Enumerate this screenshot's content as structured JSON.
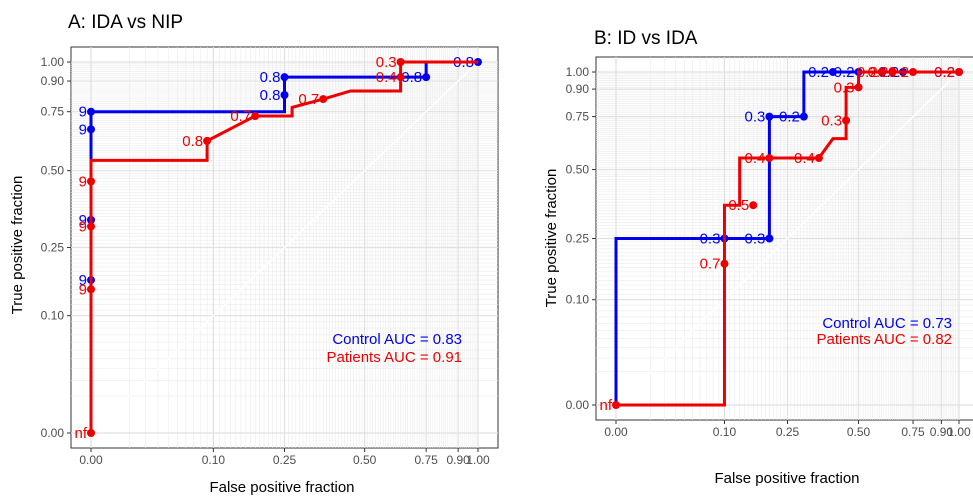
{
  "colors": {
    "control": "#0000ee",
    "patients": "#ee0000",
    "grid": "#ebebeb",
    "panel_border": "#333333"
  },
  "chart_data": [
    {
      "type": "line",
      "title": "A: IDA vs NIP",
      "xlabel": "False positive fraction",
      "ylabel": "True positive fraction",
      "xlim": [
        0,
        1
      ],
      "ylim": [
        0,
        1
      ],
      "x_ticks": [
        "0.00",
        "0.10",
        "0.25",
        "0.50",
        "0.75",
        "0.90",
        "1.00"
      ],
      "y_ticks": [
        "0.00",
        "0.10",
        "0.25",
        "0.50",
        "0.75",
        "0.90",
        "1.00"
      ],
      "grid": true,
      "series": [
        {
          "name": "Control",
          "auc_label": "Control AUC = 0.83",
          "x": [
            0,
            0,
            0,
            0,
            0,
            0,
            0.25,
            0.25,
            0.75,
            0.75,
            1
          ],
          "y": [
            0,
            0.17,
            0.33,
            0.58,
            0.67,
            0.75,
            0.75,
            0.92,
            0.92,
            1,
            1
          ],
          "points": [
            {
              "x": 0,
              "y": 0.17,
              "label": "9"
            },
            {
              "x": 0,
              "y": 0.33,
              "label": "9"
            },
            {
              "x": 0,
              "y": 0.67,
              "label": "9"
            },
            {
              "x": 0,
              "y": 0.75,
              "label": "9"
            },
            {
              "x": 0.25,
              "y": 0.83,
              "label": "0.8"
            },
            {
              "x": 0.25,
              "y": 0.92,
              "label": "0.8"
            },
            {
              "x": 0.75,
              "y": 0.92,
              "label": "0.8"
            },
            {
              "x": 1,
              "y": 1,
              "label": "0.8"
            }
          ]
        },
        {
          "name": "Patients",
          "auc_label": "Patients AUC = 0.91",
          "x": [
            0,
            0,
            0,
            0.09,
            0.09,
            0.18,
            0.18,
            0.27,
            0.27,
            0.36,
            0.45,
            0.64,
            0.64,
            1
          ],
          "y": [
            0,
            0.15,
            0.54,
            0.54,
            0.62,
            0.73,
            0.73,
            0.73,
            0.77,
            0.81,
            0.85,
            0.85,
            1,
            1
          ],
          "points": [
            {
              "x": 0,
              "y": 0,
              "label": "nf"
            },
            {
              "x": 0,
              "y": 0.15,
              "label": "9"
            },
            {
              "x": 0,
              "y": 0.31,
              "label": "9"
            },
            {
              "x": 0,
              "y": 0.46,
              "label": "9"
            },
            {
              "x": 0.09,
              "y": 0.62,
              "label": "0.8"
            },
            {
              "x": 0.18,
              "y": 0.73,
              "label": "0.7"
            },
            {
              "x": 0.36,
              "y": 0.81,
              "label": "0.7"
            },
            {
              "x": 0.64,
              "y": 0.92,
              "label": "0.4"
            },
            {
              "x": 0.64,
              "y": 1,
              "label": "0.3"
            }
          ]
        }
      ]
    },
    {
      "type": "line",
      "title": "B: ID vs IDA",
      "xlabel": "False positive fraction",
      "ylabel": "True positive fraction",
      "xlim": [
        0,
        1
      ],
      "ylim": [
        0,
        1
      ],
      "x_ticks": [
        "0.00",
        "0.10",
        "0.25",
        "0.50",
        "0.75",
        "0.90",
        "1.00"
      ],
      "y_ticks": [
        "0.00",
        "0.10",
        "0.25",
        "0.50",
        "0.75",
        "0.90",
        "1.00"
      ],
      "grid": true,
      "series": [
        {
          "name": "Control",
          "auc_label": "Control AUC = 0.73",
          "x": [
            0,
            0,
            0.2,
            0.2,
            0.3,
            0.3,
            1
          ],
          "y": [
            0,
            0.25,
            0.25,
            0.75,
            0.75,
            1,
            1
          ],
          "points": [
            {
              "x": 0.1,
              "y": 0.25,
              "label": "0.3"
            },
            {
              "x": 0.2,
              "y": 0.25,
              "label": "0.3"
            },
            {
              "x": 0.2,
              "y": 0.75,
              "label": "0.3"
            },
            {
              "x": 0.3,
              "y": 0.75,
              "label": "0.2"
            },
            {
              "x": 0.4,
              "y": 1,
              "label": "0.2"
            },
            {
              "x": 0.5,
              "y": 1,
              "label": "0.2"
            },
            {
              "x": 0.7,
              "y": 1,
              "label": "0.2"
            },
            {
              "x": 1,
              "y": 1,
              "label": "0.2"
            }
          ]
        },
        {
          "name": "Patients",
          "auc_label": "Patients AUC = 0.82",
          "x": [
            0,
            0.1,
            0.1,
            0.13,
            0.13,
            0.16,
            0.16,
            0.35,
            0.4,
            0.45,
            0.45,
            0.5,
            0.5,
            1
          ],
          "y": [
            0,
            0,
            0.36,
            0.36,
            0.55,
            0.55,
            0.55,
            0.55,
            0.64,
            0.64,
            0.91,
            0.91,
            1,
            1
          ],
          "points": [
            {
              "x": 0,
              "y": 0,
              "label": "nf"
            },
            {
              "x": 0.1,
              "y": 0.18,
              "label": "0.7"
            },
            {
              "x": 0.16,
              "y": 0.36,
              "label": "0.5"
            },
            {
              "x": 0.2,
              "y": 0.55,
              "label": "0.4"
            },
            {
              "x": 0.35,
              "y": 0.55,
              "label": "0.4"
            },
            {
              "x": 0.45,
              "y": 0.73,
              "label": "0.3"
            },
            {
              "x": 0.5,
              "y": 0.91,
              "label": "0.3"
            },
            {
              "x": 0.6,
              "y": 1,
              "label": "0.2"
            },
            {
              "x": 0.65,
              "y": 1,
              "label": "0.2"
            },
            {
              "x": 0.75,
              "y": 1,
              "label": "0.2"
            },
            {
              "x": 1,
              "y": 1,
              "label": "0.2"
            }
          ]
        }
      ]
    }
  ]
}
